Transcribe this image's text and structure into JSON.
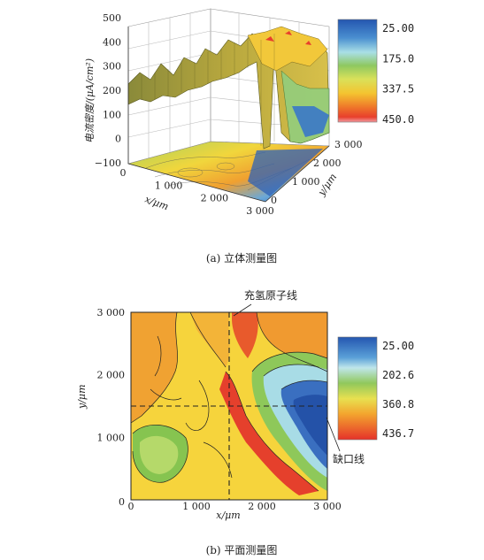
{
  "chart_data": [
    {
      "type": "surface",
      "caption": "(a) 立体测量图",
      "zlabel": "电流密度/(μA/cm²)",
      "xlabel": "x/μm",
      "ylabel": "y/μm",
      "zlim": [
        -100,
        500
      ],
      "z_ticks": [
        "500",
        "400",
        "300",
        "200",
        "100",
        "0",
        "−100"
      ],
      "x_ticks": [
        "0",
        "1 000",
        "2 000",
        "3 000"
      ],
      "y_ticks": [
        "0",
        "1 000",
        "2 000",
        "3 000"
      ],
      "colorbar": {
        "labels": [
          "25.00",
          "175.0",
          "337.5",
          "450.0"
        ]
      }
    },
    {
      "type": "heatmap",
      "caption": "(b) 平面测量图",
      "xlabel": "x/μm",
      "ylabel": "y/μm",
      "x_ticks": [
        "0",
        "1 000",
        "2 000",
        "3 000"
      ],
      "y_ticks": [
        "1 000",
        "2 000",
        "3 000"
      ],
      "xlim": [
        0,
        3000
      ],
      "ylim": [
        0,
        3000
      ],
      "colorbar": {
        "labels": [
          "25.00",
          "202.6",
          "360.8",
          "436.7"
        ]
      },
      "annotations": [
        {
          "text": "充氢原子线",
          "x": 1500
        },
        {
          "text": "缺口线"
        }
      ],
      "hydrogen_line_x": 1500,
      "hydrogen_line_y": 1500
    }
  ],
  "colors": {
    "low": "#2b5fb5",
    "mid": "#7ec24a",
    "high": "#f2d23a",
    "peak": "#e8322a"
  }
}
